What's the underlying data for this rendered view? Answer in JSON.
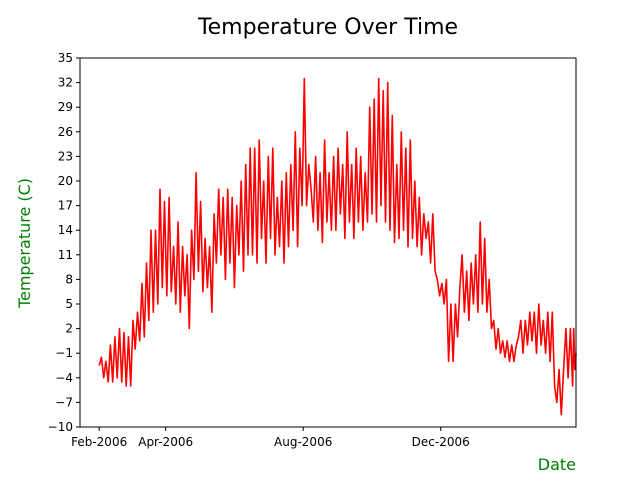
{
  "chart_data": {
    "type": "line",
    "title": "Temperature Over Time",
    "xlabel": "Date",
    "ylabel": "Temperature (C)",
    "xlim": [
      "2006-01-15",
      "2007-03-31"
    ],
    "ylim": [
      -10,
      35
    ],
    "yticks": [
      -10,
      -7,
      -4,
      -1,
      2,
      5,
      8,
      11,
      14,
      17,
      20,
      23,
      26,
      29,
      32,
      35
    ],
    "xticks": [
      {
        "date": "2006-02-01",
        "label": "Feb-2006"
      },
      {
        "date": "2006-04-01",
        "label": "Apr-2006"
      },
      {
        "date": "2006-08-01",
        "label": "Aug-2006"
      },
      {
        "date": "2006-12-01",
        "label": "Dec-2006"
      }
    ],
    "grid": false,
    "legend": "none",
    "series": [
      {
        "color": "#ff0000",
        "points": [
          [
            "2006-02-01",
            -2.5
          ],
          [
            "2006-02-03",
            -1.5
          ],
          [
            "2006-02-05",
            -4.0
          ],
          [
            "2006-02-07",
            -2.0
          ],
          [
            "2006-02-09",
            -4.5
          ],
          [
            "2006-02-11",
            0.0
          ],
          [
            "2006-02-13",
            -4.5
          ],
          [
            "2006-02-15",
            1.0
          ],
          [
            "2006-02-17",
            -4.0
          ],
          [
            "2006-02-19",
            2.0
          ],
          [
            "2006-02-21",
            -4.5
          ],
          [
            "2006-02-23",
            1.5
          ],
          [
            "2006-02-25",
            -5.0
          ],
          [
            "2006-02-27",
            1.0
          ],
          [
            "2006-03-01",
            -5.0
          ],
          [
            "2006-03-03",
            3.0
          ],
          [
            "2006-03-05",
            -0.5
          ],
          [
            "2006-03-07",
            4.0
          ],
          [
            "2006-03-09",
            0.5
          ],
          [
            "2006-03-11",
            7.5
          ],
          [
            "2006-03-13",
            1.0
          ],
          [
            "2006-03-15",
            10.0
          ],
          [
            "2006-03-17",
            3.0
          ],
          [
            "2006-03-19",
            14.0
          ],
          [
            "2006-03-21",
            4.0
          ],
          [
            "2006-03-23",
            14.0
          ],
          [
            "2006-03-25",
            5.0
          ],
          [
            "2006-03-27",
            19.0
          ],
          [
            "2006-03-29",
            7.0
          ],
          [
            "2006-03-31",
            17.5
          ],
          [
            "2006-04-02",
            6.0
          ],
          [
            "2006-04-04",
            18.0
          ],
          [
            "2006-04-06",
            6.5
          ],
          [
            "2006-04-08",
            12.0
          ],
          [
            "2006-04-10",
            5.0
          ],
          [
            "2006-04-12",
            15.0
          ],
          [
            "2006-04-14",
            4.0
          ],
          [
            "2006-04-16",
            12.0
          ],
          [
            "2006-04-18",
            6.0
          ],
          [
            "2006-04-20",
            11.0
          ],
          [
            "2006-04-22",
            2.0
          ],
          [
            "2006-04-24",
            14.0
          ],
          [
            "2006-04-26",
            8.0
          ],
          [
            "2006-04-28",
            21.0
          ],
          [
            "2006-04-30",
            9.0
          ],
          [
            "2006-05-02",
            17.5
          ],
          [
            "2006-05-04",
            6.5
          ],
          [
            "2006-05-06",
            13.0
          ],
          [
            "2006-05-08",
            7.0
          ],
          [
            "2006-05-10",
            12.0
          ],
          [
            "2006-05-12",
            4.0
          ],
          [
            "2006-05-14",
            16.0
          ],
          [
            "2006-05-16",
            10.0
          ],
          [
            "2006-05-18",
            19.0
          ],
          [
            "2006-05-20",
            11.0
          ],
          [
            "2006-05-22",
            18.0
          ],
          [
            "2006-05-24",
            8.0
          ],
          [
            "2006-05-26",
            19.0
          ],
          [
            "2006-05-28",
            10.0
          ],
          [
            "2006-05-30",
            18.0
          ],
          [
            "2006-06-01",
            7.0
          ],
          [
            "2006-06-03",
            17.0
          ],
          [
            "2006-06-05",
            11.0
          ],
          [
            "2006-06-07",
            20.0
          ],
          [
            "2006-06-09",
            9.0
          ],
          [
            "2006-06-11",
            22.0
          ],
          [
            "2006-06-13",
            11.0
          ],
          [
            "2006-06-15",
            24.0
          ],
          [
            "2006-06-17",
            11.0
          ],
          [
            "2006-06-19",
            24.0
          ],
          [
            "2006-06-21",
            10.0
          ],
          [
            "2006-06-23",
            25.0
          ],
          [
            "2006-06-25",
            13.0
          ],
          [
            "2006-06-27",
            20.0
          ],
          [
            "2006-06-29",
            10.0
          ],
          [
            "2006-07-01",
            23.0
          ],
          [
            "2006-07-03",
            13.0
          ],
          [
            "2006-07-05",
            24.0
          ],
          [
            "2006-07-07",
            11.0
          ],
          [
            "2006-07-09",
            18.0
          ],
          [
            "2006-07-11",
            12.0
          ],
          [
            "2006-07-13",
            20.0
          ],
          [
            "2006-07-15",
            10.0
          ],
          [
            "2006-07-17",
            21.0
          ],
          [
            "2006-07-19",
            12.0
          ],
          [
            "2006-07-21",
            22.0
          ],
          [
            "2006-07-23",
            14.0
          ],
          [
            "2006-07-25",
            26.0
          ],
          [
            "2006-07-27",
            12.0
          ],
          [
            "2006-07-29",
            24.0
          ],
          [
            "2006-07-31",
            17.0
          ],
          [
            "2006-08-02",
            32.5
          ],
          [
            "2006-08-04",
            17.0
          ],
          [
            "2006-08-06",
            22.0
          ],
          [
            "2006-08-08",
            19.0
          ],
          [
            "2006-08-10",
            15.0
          ],
          [
            "2006-08-12",
            23.0
          ],
          [
            "2006-08-14",
            14.0
          ],
          [
            "2006-08-16",
            21.0
          ],
          [
            "2006-08-18",
            12.5
          ],
          [
            "2006-08-20",
            25.0
          ],
          [
            "2006-08-22",
            15.0
          ],
          [
            "2006-08-24",
            21.0
          ],
          [
            "2006-08-26",
            14.0
          ],
          [
            "2006-08-28",
            23.0
          ],
          [
            "2006-08-30",
            14.0
          ],
          [
            "2006-09-01",
            24.0
          ],
          [
            "2006-09-03",
            16.0
          ],
          [
            "2006-09-05",
            22.0
          ],
          [
            "2006-09-07",
            13.0
          ],
          [
            "2006-09-09",
            26.0
          ],
          [
            "2006-09-11",
            15.0
          ],
          [
            "2006-09-13",
            22.0
          ],
          [
            "2006-09-15",
            13.0
          ],
          [
            "2006-09-17",
            24.0
          ],
          [
            "2006-09-19",
            15.0
          ],
          [
            "2006-09-21",
            23.0
          ],
          [
            "2006-09-23",
            14.0
          ],
          [
            "2006-09-25",
            21.0
          ],
          [
            "2006-09-27",
            15.0
          ],
          [
            "2006-09-29",
            29.0
          ],
          [
            "2006-10-01",
            16.0
          ],
          [
            "2006-10-03",
            30.0
          ],
          [
            "2006-10-05",
            15.0
          ],
          [
            "2006-10-07",
            32.5
          ],
          [
            "2006-10-09",
            17.0
          ],
          [
            "2006-10-11",
            31.0
          ],
          [
            "2006-10-13",
            15.0
          ],
          [
            "2006-10-15",
            32.0
          ],
          [
            "2006-10-17",
            14.0
          ],
          [
            "2006-10-19",
            28.0
          ],
          [
            "2006-10-21",
            12.5
          ],
          [
            "2006-10-23",
            22.0
          ],
          [
            "2006-10-25",
            13.0
          ],
          [
            "2006-10-27",
            26.0
          ],
          [
            "2006-10-29",
            14.0
          ],
          [
            "2006-10-31",
            24.0
          ],
          [
            "2006-11-02",
            12.0
          ],
          [
            "2006-11-04",
            25.0
          ],
          [
            "2006-11-06",
            13.0
          ],
          [
            "2006-11-08",
            20.0
          ],
          [
            "2006-11-10",
            12.0
          ],
          [
            "2006-11-12",
            18.0
          ],
          [
            "2006-11-14",
            11.0
          ],
          [
            "2006-11-16",
            16.0
          ],
          [
            "2006-11-18",
            13.0
          ],
          [
            "2006-11-20",
            15.0
          ],
          [
            "2006-11-22",
            10.0
          ],
          [
            "2006-11-24",
            16.0
          ],
          [
            "2006-11-26",
            9.0
          ],
          [
            "2006-11-28",
            8.0
          ],
          [
            "2006-11-30",
            6.0
          ],
          [
            "2006-12-02",
            7.5
          ],
          [
            "2006-12-04",
            5.0
          ],
          [
            "2006-12-06",
            8.0
          ],
          [
            "2006-12-08",
            -2.0
          ],
          [
            "2006-12-10",
            5.0
          ],
          [
            "2006-12-12",
            -2.0
          ],
          [
            "2006-12-14",
            5.0
          ],
          [
            "2006-12-16",
            1.0
          ],
          [
            "2006-12-18",
            7.0
          ],
          [
            "2006-12-20",
            11.0
          ],
          [
            "2006-12-22",
            4.0
          ],
          [
            "2006-12-24",
            9.0
          ],
          [
            "2006-12-26",
            3.0
          ],
          [
            "2006-12-28",
            10.0
          ],
          [
            "2006-12-30",
            5.0
          ],
          [
            "2007-01-01",
            11.0
          ],
          [
            "2007-01-03",
            4.0
          ],
          [
            "2007-01-05",
            15.0
          ],
          [
            "2007-01-07",
            5.0
          ],
          [
            "2007-01-09",
            13.0
          ],
          [
            "2007-01-11",
            4.0
          ],
          [
            "2007-01-13",
            8.0
          ],
          [
            "2007-01-15",
            2.0
          ],
          [
            "2007-01-17",
            3.0
          ],
          [
            "2007-01-19",
            -0.5
          ],
          [
            "2007-01-21",
            2.0
          ],
          [
            "2007-01-23",
            -1.0
          ],
          [
            "2007-01-25",
            0.5
          ],
          [
            "2007-01-27",
            -1.5
          ],
          [
            "2007-01-29",
            0.5
          ],
          [
            "2007-01-31",
            -2.0
          ],
          [
            "2007-02-02",
            0.0
          ],
          [
            "2007-02-04",
            -2.0
          ],
          [
            "2007-02-06",
            0.0
          ],
          [
            "2007-02-08",
            1.0
          ],
          [
            "2007-02-10",
            3.0
          ],
          [
            "2007-02-12",
            -1.0
          ],
          [
            "2007-02-14",
            3.0
          ],
          [
            "2007-02-16",
            0.0
          ],
          [
            "2007-02-18",
            4.0
          ],
          [
            "2007-02-20",
            0.5
          ],
          [
            "2007-02-22",
            4.0
          ],
          [
            "2007-02-24",
            -1.0
          ],
          [
            "2007-02-26",
            5.0
          ],
          [
            "2007-02-28",
            0.0
          ],
          [
            "2007-03-02",
            3.0
          ],
          [
            "2007-03-04",
            -1.0
          ],
          [
            "2007-03-06",
            4.0
          ],
          [
            "2007-03-08",
            -2.0
          ],
          [
            "2007-03-10",
            4.0
          ],
          [
            "2007-03-12",
            -5.0
          ],
          [
            "2007-03-14",
            -7.0
          ],
          [
            "2007-03-16",
            -3.0
          ],
          [
            "2007-03-18",
            -8.5
          ],
          [
            "2007-03-20",
            -3.0
          ],
          [
            "2007-03-22",
            2.0
          ],
          [
            "2007-03-24",
            -4.0
          ],
          [
            "2007-03-26",
            2.0
          ],
          [
            "2007-03-28",
            -5.0
          ],
          [
            "2007-03-29",
            2.0
          ],
          [
            "2007-03-30",
            -3.0
          ],
          [
            "2007-03-31",
            -1.0
          ]
        ]
      }
    ]
  }
}
